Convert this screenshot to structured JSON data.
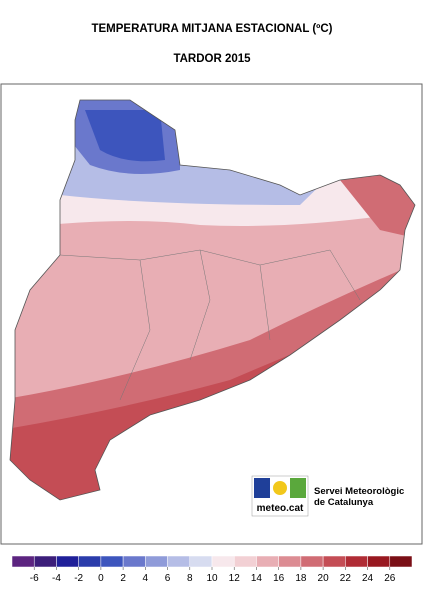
{
  "header": {
    "title": "TEMPERATURA MITJANA ESTACIONAL (ºC)",
    "subtitle": "TARDOR 2015"
  },
  "logo": {
    "brand": "meteo.cat",
    "line1": "Servei Meteorològic",
    "line2": "de Catalunya"
  },
  "legend": {
    "range": [
      -8,
      28
    ],
    "ticks": [
      -6,
      -4,
      -2,
      0,
      2,
      4,
      6,
      8,
      10,
      12,
      14,
      16,
      18,
      20,
      22,
      24,
      26
    ],
    "colors": [
      "#5c2480",
      "#3c1e7a",
      "#1f1f99",
      "#2a3cab",
      "#3d55bd",
      "#6a78cc",
      "#8f9bd9",
      "#b5bde6",
      "#d7dcf0",
      "#f7e8ec",
      "#f2d0d4",
      "#e8aeb4",
      "#dc8c93",
      "#d06c74",
      "#c44d55",
      "#b02c35",
      "#981820",
      "#7a0f16"
    ]
  }
}
